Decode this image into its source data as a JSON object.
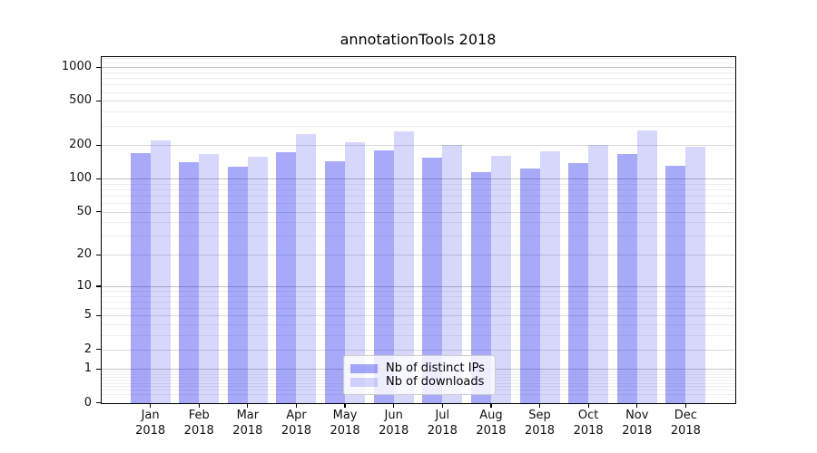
{
  "title": "annotationTools 2018",
  "chart_data": {
    "type": "bar",
    "title": "annotationTools 2018",
    "categories": [
      "Jan",
      "Feb",
      "Mar",
      "Apr",
      "May",
      "Jun",
      "Jul",
      "Aug",
      "Sep",
      "Oct",
      "Nov",
      "Dec"
    ],
    "category_year": "2018",
    "series": [
      {
        "name": "Nb of distinct IPs",
        "color": "rgba(30,30,240,0.38)",
        "values": [
          169,
          140,
          128,
          172,
          143,
          178,
          154,
          114,
          124,
          138,
          166,
          131
        ]
      },
      {
        "name": "Nb of downloads",
        "color": "rgba(30,30,240,0.175)",
        "values": [
          220,
          167,
          156,
          250,
          213,
          265,
          202,
          160,
          175,
          200,
          270,
          193
        ]
      }
    ],
    "yscale": "log10(value+1)",
    "yticks": [
      0,
      1,
      2,
      5,
      10,
      20,
      50,
      100,
      200,
      500,
      1000
    ],
    "ylim": [
      0,
      1232
    ],
    "grid": true,
    "legend_position": "lower center"
  },
  "colors": {
    "background": "#ffffff",
    "axis": "#000000",
    "grid_major_decade": "#c2c2c2",
    "grid_major": "#dbdbdb",
    "grid_minor": "#eeeeee",
    "tick_text": "#111111"
  }
}
